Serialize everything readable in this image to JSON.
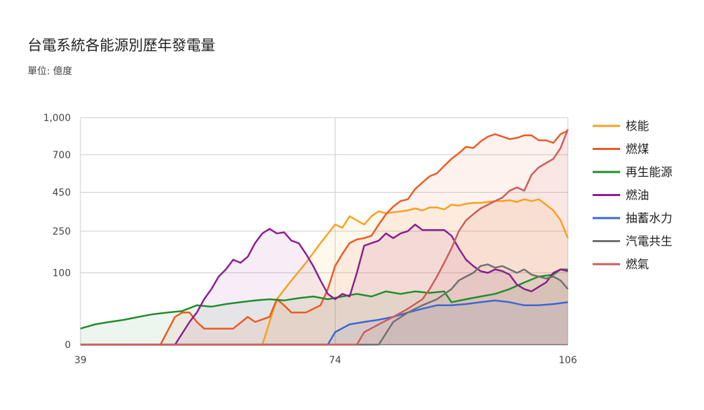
{
  "chart_data": {
    "type": "area",
    "title": "台電系統各能源別歷年發電量",
    "subtitle": "單位: 億度",
    "xlabel": "",
    "ylabel": "",
    "x_start": 39,
    "x_end": 106,
    "x_ticks": [
      "39",
      "74",
      "106"
    ],
    "y_ticks": [
      "0",
      "100",
      "250",
      "450",
      "700",
      "1,000"
    ],
    "y_tick_values": [
      0,
      100,
      250,
      450,
      700,
      1000
    ],
    "y_scale": "sqrt",
    "ylim": [
      0,
      1000
    ],
    "grid": true,
    "legend_position": "right",
    "series": [
      {
        "name": "核能",
        "color": "#f6a21c",
        "points": [
          [
            39,
            0
          ],
          [
            64,
            0
          ],
          [
            66,
            40
          ],
          [
            68,
            80
          ],
          [
            70,
            130
          ],
          [
            72,
            200
          ],
          [
            74,
            280
          ],
          [
            75,
            265
          ],
          [
            76,
            320
          ],
          [
            77,
            300
          ],
          [
            78,
            280
          ],
          [
            79,
            320
          ],
          [
            80,
            345
          ],
          [
            81,
            335
          ],
          [
            82,
            340
          ],
          [
            83,
            345
          ],
          [
            84,
            350
          ],
          [
            85,
            360
          ],
          [
            86,
            350
          ],
          [
            87,
            365
          ],
          [
            88,
            365
          ],
          [
            89,
            355
          ],
          [
            90,
            380
          ],
          [
            91,
            375
          ],
          [
            92,
            385
          ],
          [
            93,
            390
          ],
          [
            94,
            390
          ],
          [
            95,
            395
          ],
          [
            96,
            400
          ],
          [
            97,
            400
          ],
          [
            98,
            405
          ],
          [
            99,
            395
          ],
          [
            100,
            410
          ],
          [
            101,
            400
          ],
          [
            102,
            410
          ],
          [
            103,
            380
          ],
          [
            104,
            350
          ],
          [
            105,
            300
          ],
          [
            106,
            220
          ]
        ]
      },
      {
        "name": "燃煤",
        "color": "#ec5a24",
        "points": [
          [
            39,
            0
          ],
          [
            50,
            0
          ],
          [
            52,
            15
          ],
          [
            53,
            20
          ],
          [
            54,
            20
          ],
          [
            55,
            10
          ],
          [
            56,
            5
          ],
          [
            60,
            5
          ],
          [
            62,
            15
          ],
          [
            63,
            10
          ],
          [
            65,
            15
          ],
          [
            66,
            40
          ],
          [
            67,
            30
          ],
          [
            68,
            20
          ],
          [
            70,
            20
          ],
          [
            72,
            30
          ],
          [
            73,
            60
          ],
          [
            74,
            120
          ],
          [
            75,
            160
          ],
          [
            76,
            200
          ],
          [
            77,
            215
          ],
          [
            78,
            220
          ],
          [
            79,
            230
          ],
          [
            80,
            280
          ],
          [
            81,
            330
          ],
          [
            82,
            370
          ],
          [
            83,
            400
          ],
          [
            84,
            410
          ],
          [
            85,
            470
          ],
          [
            86,
            510
          ],
          [
            87,
            550
          ],
          [
            88,
            570
          ],
          [
            89,
            620
          ],
          [
            90,
            670
          ],
          [
            91,
            710
          ],
          [
            92,
            760
          ],
          [
            93,
            750
          ],
          [
            94,
            800
          ],
          [
            95,
            840
          ],
          [
            96,
            860
          ],
          [
            97,
            840
          ],
          [
            98,
            820
          ],
          [
            99,
            830
          ],
          [
            100,
            850
          ],
          [
            101,
            850
          ],
          [
            102,
            810
          ],
          [
            103,
            810
          ],
          [
            104,
            790
          ],
          [
            105,
            860
          ],
          [
            106,
            890
          ]
        ]
      },
      {
        "name": "再生能源",
        "color": "#1e8d2b",
        "points": [
          [
            39,
            5
          ],
          [
            41,
            8
          ],
          [
            43,
            10
          ],
          [
            45,
            12
          ],
          [
            47,
            15
          ],
          [
            49,
            18
          ],
          [
            51,
            20
          ],
          [
            53,
            22
          ],
          [
            55,
            30
          ],
          [
            57,
            28
          ],
          [
            59,
            32
          ],
          [
            61,
            35
          ],
          [
            63,
            38
          ],
          [
            65,
            40
          ],
          [
            67,
            38
          ],
          [
            69,
            42
          ],
          [
            71,
            45
          ],
          [
            73,
            40
          ],
          [
            75,
            45
          ],
          [
            77,
            50
          ],
          [
            79,
            45
          ],
          [
            81,
            55
          ],
          [
            83,
            50
          ],
          [
            85,
            55
          ],
          [
            87,
            52
          ],
          [
            89,
            55
          ],
          [
            90,
            35
          ],
          [
            92,
            40
          ],
          [
            94,
            45
          ],
          [
            96,
            50
          ],
          [
            98,
            60
          ],
          [
            100,
            75
          ],
          [
            102,
            90
          ],
          [
            104,
            95
          ],
          [
            105,
            110
          ],
          [
            106,
            110
          ]
        ]
      },
      {
        "name": "燃油",
        "color": "#8b1e8f",
        "points": [
          [
            39,
            0
          ],
          [
            52,
            0
          ],
          [
            54,
            10
          ],
          [
            55,
            20
          ],
          [
            56,
            40
          ],
          [
            57,
            60
          ],
          [
            58,
            90
          ],
          [
            59,
            110
          ],
          [
            60,
            140
          ],
          [
            61,
            130
          ],
          [
            62,
            150
          ],
          [
            63,
            200
          ],
          [
            64,
            240
          ],
          [
            65,
            260
          ],
          [
            66,
            240
          ],
          [
            67,
            245
          ],
          [
            68,
            210
          ],
          [
            69,
            200
          ],
          [
            70,
            160
          ],
          [
            71,
            120
          ],
          [
            72,
            80
          ],
          [
            73,
            50
          ],
          [
            74,
            40
          ],
          [
            75,
            50
          ],
          [
            76,
            45
          ],
          [
            77,
            100
          ],
          [
            78,
            190
          ],
          [
            79,
            200
          ],
          [
            80,
            210
          ],
          [
            81,
            240
          ],
          [
            82,
            220
          ],
          [
            83,
            240
          ],
          [
            84,
            250
          ],
          [
            85,
            280
          ],
          [
            86,
            255
          ],
          [
            87,
            255
          ],
          [
            88,
            255
          ],
          [
            89,
            255
          ],
          [
            90,
            230
          ],
          [
            91,
            180
          ],
          [
            92,
            140
          ],
          [
            93,
            120
          ],
          [
            94,
            105
          ],
          [
            95,
            100
          ],
          [
            96,
            110
          ],
          [
            97,
            105
          ],
          [
            98,
            95
          ],
          [
            99,
            70
          ],
          [
            100,
            60
          ],
          [
            101,
            55
          ],
          [
            102,
            65
          ],
          [
            103,
            75
          ],
          [
            104,
            100
          ],
          [
            105,
            110
          ],
          [
            106,
            105
          ]
        ]
      },
      {
        "name": "抽蓄水力",
        "color": "#3a66d6",
        "points": [
          [
            39,
            0
          ],
          [
            73,
            0
          ],
          [
            74,
            3
          ],
          [
            76,
            8
          ],
          [
            78,
            10
          ],
          [
            80,
            12
          ],
          [
            82,
            15
          ],
          [
            84,
            20
          ],
          [
            86,
            25
          ],
          [
            88,
            30
          ],
          [
            90,
            30
          ],
          [
            92,
            32
          ],
          [
            94,
            35
          ],
          [
            96,
            38
          ],
          [
            98,
            35
          ],
          [
            100,
            30
          ],
          [
            102,
            30
          ],
          [
            104,
            32
          ],
          [
            106,
            35
          ]
        ]
      },
      {
        "name": "汽電共生",
        "color": "#707070",
        "points": [
          [
            39,
            0
          ],
          [
            80,
            0
          ],
          [
            82,
            10
          ],
          [
            84,
            20
          ],
          [
            86,
            30
          ],
          [
            88,
            40
          ],
          [
            90,
            60
          ],
          [
            91,
            80
          ],
          [
            92,
            90
          ],
          [
            93,
            100
          ],
          [
            94,
            120
          ],
          [
            95,
            125
          ],
          [
            96,
            115
          ],
          [
            97,
            120
          ],
          [
            98,
            110
          ],
          [
            99,
            100
          ],
          [
            100,
            110
          ],
          [
            101,
            95
          ],
          [
            102,
            90
          ],
          [
            103,
            85
          ],
          [
            104,
            90
          ],
          [
            105,
            80
          ],
          [
            106,
            60
          ]
        ]
      },
      {
        "name": "燃氣",
        "color": "#cd5c5c",
        "points": [
          [
            39,
            0
          ],
          [
            77,
            0
          ],
          [
            78,
            3
          ],
          [
            80,
            8
          ],
          [
            82,
            15
          ],
          [
            84,
            25
          ],
          [
            86,
            40
          ],
          [
            87,
            60
          ],
          [
            88,
            90
          ],
          [
            89,
            130
          ],
          [
            90,
            180
          ],
          [
            91,
            250
          ],
          [
            92,
            300
          ],
          [
            93,
            330
          ],
          [
            94,
            360
          ],
          [
            95,
            380
          ],
          [
            96,
            400
          ],
          [
            97,
            420
          ],
          [
            98,
            460
          ],
          [
            99,
            480
          ],
          [
            100,
            460
          ],
          [
            101,
            560
          ],
          [
            102,
            610
          ],
          [
            103,
            640
          ],
          [
            104,
            670
          ],
          [
            105,
            750
          ],
          [
            106,
            900
          ]
        ]
      }
    ]
  }
}
